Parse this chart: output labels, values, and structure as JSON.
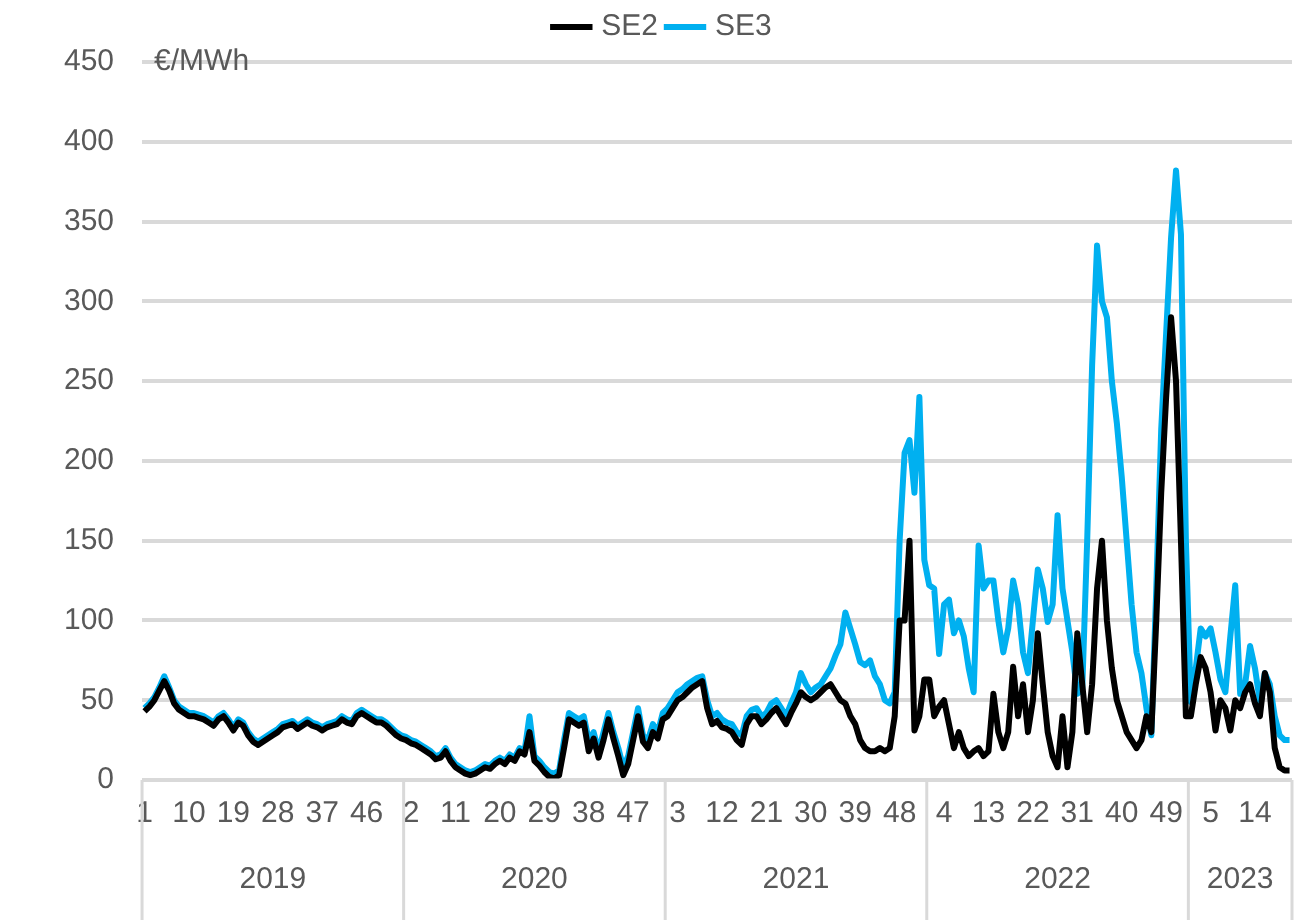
{
  "chart_data": {
    "type": "line",
    "ylabel": "€/MWh",
    "categories": [
      "1",
      null,
      null,
      null,
      null,
      null,
      null,
      null,
      null,
      "10",
      null,
      null,
      null,
      null,
      null,
      null,
      null,
      null,
      "19",
      null,
      null,
      null,
      null,
      null,
      null,
      null,
      null,
      "28",
      null,
      null,
      null,
      null,
      null,
      null,
      null,
      null,
      "37",
      null,
      null,
      null,
      null,
      null,
      null,
      null,
      null,
      "46",
      null,
      null,
      null,
      null,
      null,
      null,
      null,
      null,
      "2",
      null,
      null,
      null,
      null,
      null,
      null,
      null,
      null,
      "11",
      null,
      null,
      null,
      null,
      null,
      null,
      null,
      null,
      "20",
      null,
      null,
      null,
      null,
      null,
      null,
      null,
      null,
      "29",
      null,
      null,
      null,
      null,
      null,
      null,
      null,
      null,
      "38",
      null,
      null,
      null,
      null,
      null,
      null,
      null,
      null,
      "47",
      null,
      null,
      null,
      null,
      null,
      null,
      null,
      null,
      "3",
      null,
      null,
      null,
      null,
      null,
      null,
      null,
      null,
      "12",
      null,
      null,
      null,
      null,
      null,
      null,
      null,
      null,
      "21",
      null,
      null,
      null,
      null,
      null,
      null,
      null,
      null,
      "30",
      null,
      null,
      null,
      null,
      null,
      null,
      null,
      null,
      "39",
      null,
      null,
      null,
      null,
      null,
      null,
      null,
      null,
      "48",
      null,
      null,
      null,
      null,
      null,
      null,
      null,
      null,
      "4",
      null,
      null,
      null,
      null,
      null,
      null,
      null,
      null,
      "13",
      null,
      null,
      null,
      null,
      null,
      null,
      null,
      null,
      "22",
      null,
      null,
      null,
      null,
      null,
      null,
      null,
      null,
      "31",
      null,
      null,
      null,
      null,
      null,
      null,
      null,
      null,
      "40",
      null,
      null,
      null,
      null,
      null,
      null,
      null,
      null,
      "49",
      null,
      null,
      null,
      null,
      null,
      null,
      null,
      null,
      "5",
      null,
      null,
      null,
      null,
      null,
      null,
      null,
      null,
      "14",
      null,
      null,
      null,
      null,
      null,
      null,
      null
    ],
    "series": [
      {
        "name": "SE2",
        "color": "#000000",
        "values": [
          43,
          46,
          50,
          56,
          62,
          56,
          48,
          44,
          42,
          40,
          40,
          39,
          38,
          36,
          34,
          38,
          40,
          36,
          31,
          36,
          34,
          28,
          24,
          22,
          24,
          26,
          28,
          30,
          33,
          34,
          35,
          32,
          34,
          36,
          34,
          33,
          31,
          33,
          34,
          35,
          38,
          36,
          35,
          40,
          42,
          40,
          38,
          36,
          36,
          34,
          31,
          28,
          26,
          25,
          23,
          22,
          20,
          18,
          16,
          13,
          14,
          18,
          12,
          8,
          6,
          4,
          3,
          4,
          6,
          8,
          7,
          10,
          12,
          10,
          14,
          12,
          18,
          16,
          30,
          12,
          9,
          5,
          2,
          1,
          3,
          20,
          38,
          36,
          34,
          36,
          18,
          26,
          14,
          25,
          38,
          26,
          15,
          3,
          10,
          25,
          40,
          24,
          20,
          30,
          26,
          38,
          40,
          45,
          50,
          52,
          55,
          58,
          60,
          62,
          45,
          35,
          37,
          33,
          32,
          30,
          25,
          22,
          35,
          40,
          40,
          35,
          38,
          42,
          45,
          40,
          35,
          42,
          48,
          55,
          52,
          50,
          52,
          55,
          58,
          60,
          55,
          50,
          48,
          40,
          35,
          25,
          20,
          18,
          18,
          20,
          18,
          20,
          40,
          100,
          100,
          150,
          31,
          40,
          63,
          63,
          40,
          46,
          50,
          35,
          20,
          30,
          20,
          15,
          18,
          20,
          15,
          18,
          54,
          30,
          20,
          30,
          71,
          40,
          60,
          30,
          50,
          92,
          60,
          30,
          15,
          8,
          40,
          8,
          30,
          92,
          60,
          30,
          60,
          120,
          150,
          100,
          70,
          50,
          40,
          30,
          25,
          20,
          25,
          40,
          30,
          100,
          180,
          240,
          290,
          250,
          150,
          40,
          40,
          60,
          77,
          70,
          55,
          31,
          50,
          45,
          31,
          50,
          45,
          55,
          60,
          48,
          40,
          67,
          55,
          20,
          8,
          6,
          6
        ]
      },
      {
        "name": "SE3",
        "color": "#00b0f0",
        "values": [
          45,
          48,
          52,
          58,
          65,
          58,
          50,
          46,
          44,
          42,
          42,
          41,
          40,
          38,
          36,
          40,
          42,
          38,
          33,
          38,
          36,
          30,
          26,
          24,
          26,
          28,
          30,
          32,
          35,
          36,
          37,
          34,
          36,
          38,
          36,
          35,
          33,
          35,
          36,
          37,
          40,
          38,
          37,
          42,
          44,
          42,
          40,
          38,
          38,
          36,
          33,
          30,
          28,
          27,
          25,
          24,
          22,
          20,
          18,
          15,
          16,
          20,
          14,
          10,
          8,
          6,
          5,
          6,
          8,
          10,
          9,
          12,
          14,
          12,
          16,
          14,
          20,
          18,
          40,
          15,
          12,
          8,
          5,
          4,
          6,
          25,
          42,
          40,
          38,
          40,
          25,
          30,
          18,
          30,
          42,
          30,
          20,
          8,
          15,
          30,
          45,
          28,
          25,
          35,
          30,
          42,
          45,
          50,
          55,
          57,
          60,
          62,
          64,
          65,
          50,
          40,
          42,
          38,
          36,
          35,
          30,
          28,
          40,
          44,
          45,
          40,
          42,
          48,
          50,
          45,
          40,
          48,
          55,
          67,
          60,
          55,
          58,
          60,
          65,
          70,
          78,
          85,
          105,
          95,
          85,
          74,
          72,
          75,
          65,
          60,
          50,
          48,
          55,
          150,
          205,
          213,
          180,
          240,
          138,
          122,
          120,
          79,
          110,
          113,
          92,
          100,
          90,
          70,
          55,
          147,
          120,
          125,
          125,
          100,
          80,
          95,
          125,
          110,
          80,
          67,
          100,
          132,
          120,
          99,
          110,
          166,
          120,
          100,
          80,
          54,
          57,
          150,
          260,
          335,
          300,
          290,
          250,
          224,
          190,
          150,
          110,
          80,
          67,
          45,
          28,
          120,
          220,
          280,
          340,
          382,
          342,
          150,
          49,
          70,
          95,
          90,
          95,
          80,
          63,
          55,
          90,
          122,
          54,
          60,
          84,
          70,
          49,
          67,
          60,
          40,
          28,
          25,
          25
        ]
      }
    ],
    "annotations": [
      "2019",
      "2020",
      "2021",
      "2022",
      "2023"
    ],
    "ylim": [
      0,
      450
    ],
    "yticks": [
      0,
      50,
      100,
      150,
      200,
      250,
      300,
      350,
      400,
      450
    ],
    "grid": "y",
    "legend": "top",
    "marker": "none",
    "line_style": "solid"
  }
}
